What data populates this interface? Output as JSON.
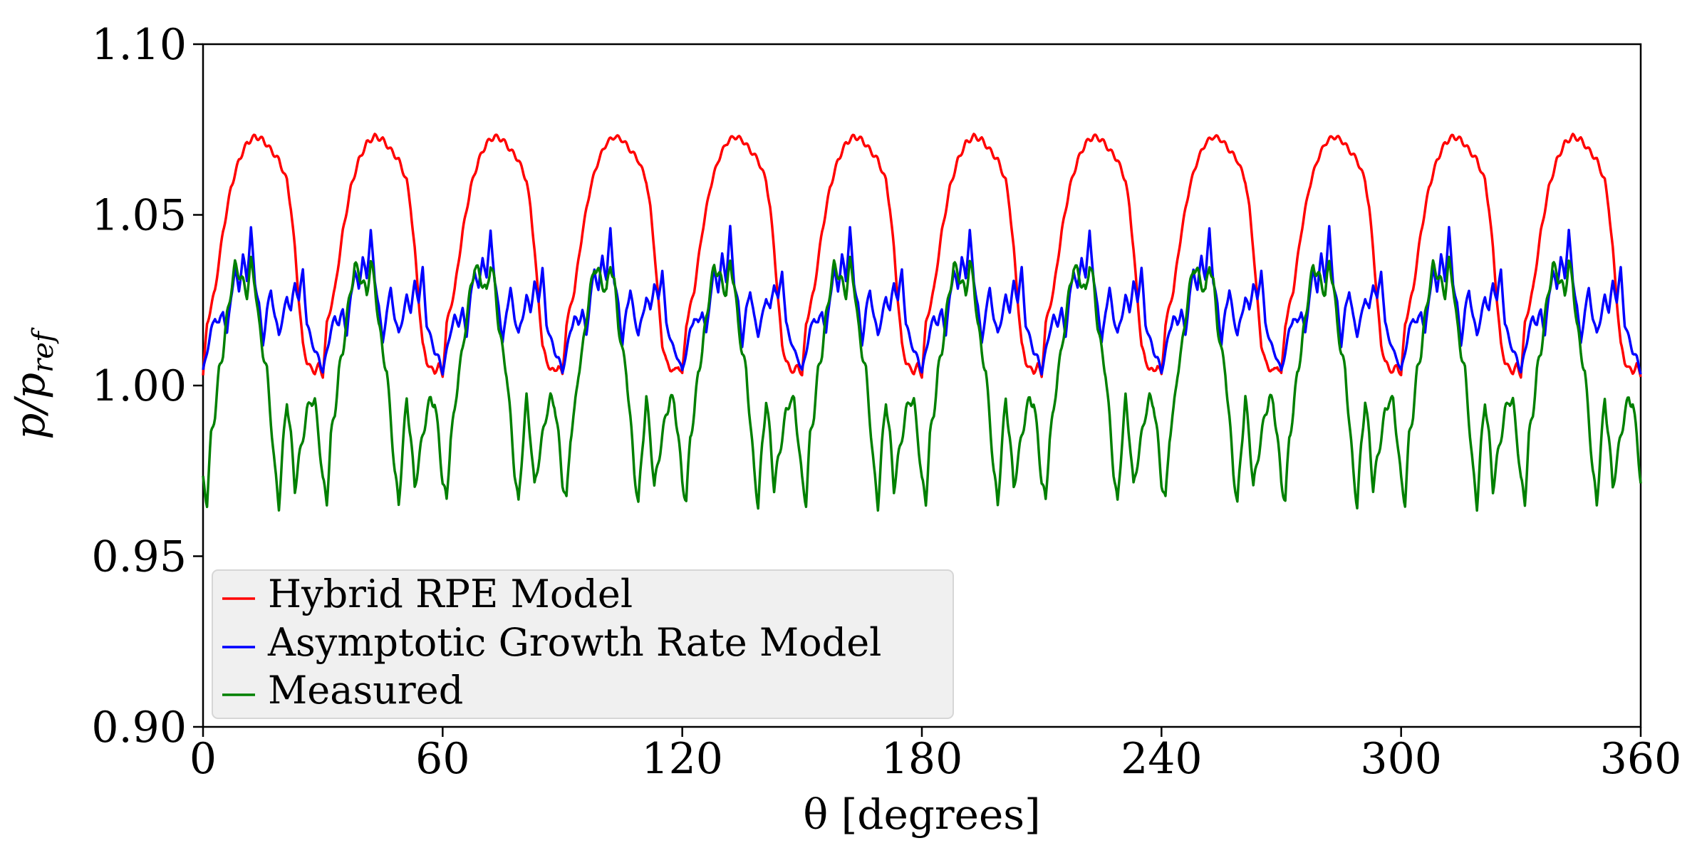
{
  "chart_data": {
    "type": "line",
    "title": "",
    "xlabel": "θ [degrees]",
    "ylabel": "p/p_ref",
    "ylabel_main": "p/p",
    "ylabel_sub": "ref",
    "xlim": [
      0,
      360
    ],
    "ylim": [
      0.9,
      1.1
    ],
    "xticks": [
      0,
      60,
      120,
      180,
      240,
      300,
      360
    ],
    "xtick_labels": [
      "0",
      "60",
      "120",
      "180",
      "240",
      "300",
      "360"
    ],
    "yticks": [
      0.9,
      0.95,
      1.0,
      1.05,
      1.1
    ],
    "ytick_labels": [
      "0.90",
      "0.95",
      "1.00",
      "1.05",
      "1.10"
    ],
    "grid": false,
    "legend_position": "lower-left",
    "period_degrees": 30,
    "series": [
      {
        "name": "Hybrid RPE Model",
        "color": "#ff0000",
        "cycle_profile": [
          [
            0,
            1.003
          ],
          [
            1,
            1.018
          ],
          [
            3,
            1.028
          ],
          [
            5,
            1.045
          ],
          [
            7,
            1.058
          ],
          [
            9,
            1.066
          ],
          [
            11,
            1.071
          ],
          [
            13,
            1.073
          ],
          [
            15,
            1.072
          ],
          [
            17,
            1.069
          ],
          [
            19,
            1.066
          ],
          [
            21,
            1.06
          ],
          [
            22,
            1.052
          ],
          [
            23,
            1.04
          ],
          [
            24,
            1.025
          ],
          [
            25,
            1.012
          ],
          [
            26,
            1.007
          ],
          [
            27,
            1.005
          ],
          [
            28,
            1.004
          ],
          [
            29,
            1.006
          ],
          [
            30,
            1.003
          ]
        ]
      },
      {
        "name": "Asymptotic Growth Rate Model",
        "color": "#0000ff",
        "cycle_profile": [
          [
            0,
            1.004
          ],
          [
            1,
            1.01
          ],
          [
            2,
            1.016
          ],
          [
            3,
            1.02
          ],
          [
            4,
            1.018
          ],
          [
            5,
            1.022
          ],
          [
            6,
            1.015
          ],
          [
            7,
            1.026
          ],
          [
            8,
            1.034
          ],
          [
            9,
            1.028
          ],
          [
            10,
            1.038
          ],
          [
            11,
            1.031
          ],
          [
            12,
            1.046
          ],
          [
            13,
            1.03
          ],
          [
            14,
            1.024
          ],
          [
            15,
            1.012
          ],
          [
            16,
            1.022
          ],
          [
            17,
            1.028
          ],
          [
            18,
            1.02
          ],
          [
            19,
            1.015
          ],
          [
            20,
            1.02
          ],
          [
            21,
            1.026
          ],
          [
            22,
            1.022
          ],
          [
            23,
            1.03
          ],
          [
            24,
            1.025
          ],
          [
            25,
            1.034
          ],
          [
            26,
            1.018
          ],
          [
            27,
            1.014
          ],
          [
            28,
            1.01
          ],
          [
            29,
            1.008
          ],
          [
            30,
            1.004
          ]
        ]
      },
      {
        "name": "Measured",
        "color": "#008000",
        "cycle_profile": [
          [
            0,
            0.972
          ],
          [
            1,
            0.966
          ],
          [
            2,
            0.985
          ],
          [
            3,
            0.992
          ],
          [
            4,
            1.004
          ],
          [
            5,
            1.01
          ],
          [
            6,
            1.02
          ],
          [
            7,
            1.028
          ],
          [
            8,
            1.035
          ],
          [
            9,
            1.033
          ],
          [
            10,
            1.03
          ],
          [
            11,
            1.027
          ],
          [
            12,
            1.036
          ],
          [
            13,
            1.03
          ],
          [
            14,
            1.018
          ],
          [
            15,
            1.01
          ],
          [
            16,
            1.004
          ],
          [
            17,
            0.99
          ],
          [
            18,
            0.975
          ],
          [
            19,
            0.965
          ],
          [
            20,
            0.982
          ],
          [
            21,
            0.996
          ],
          [
            22,
            0.985
          ],
          [
            23,
            0.97
          ],
          [
            24,
            0.978
          ],
          [
            25,
            0.985
          ],
          [
            26,
            0.992
          ],
          [
            27,
            0.996
          ],
          [
            28,
            0.995
          ],
          [
            29,
            0.985
          ],
          [
            30,
            0.972
          ]
        ]
      }
    ]
  }
}
